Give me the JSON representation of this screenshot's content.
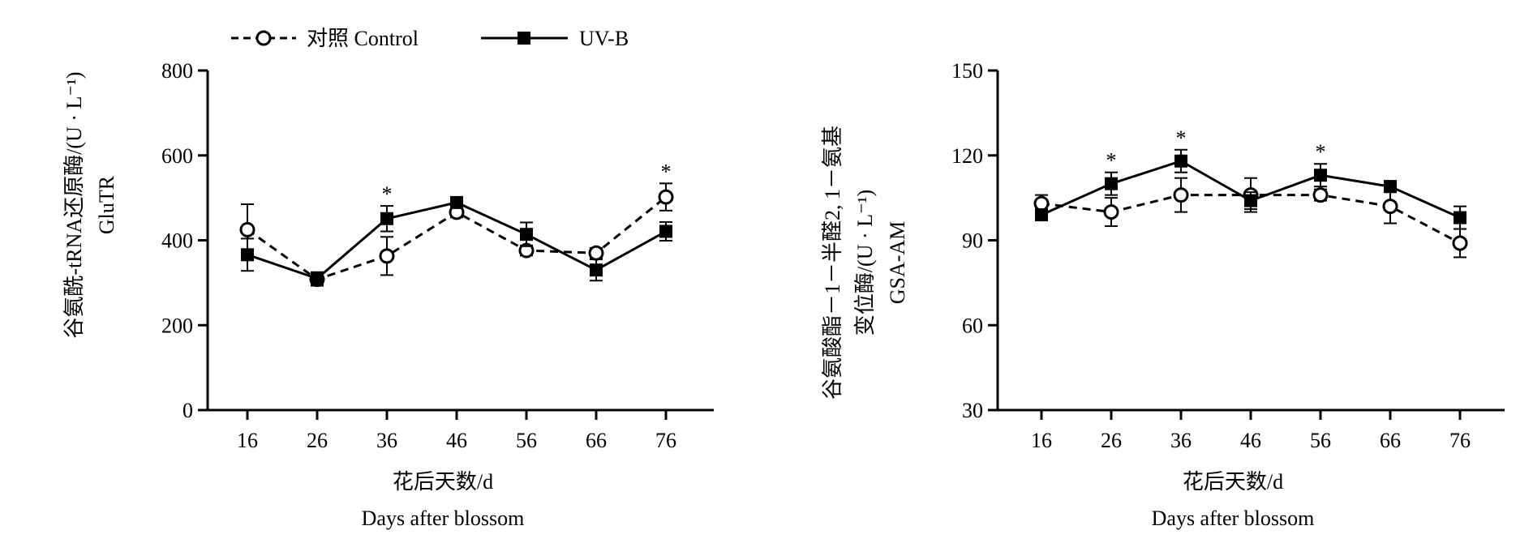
{
  "legend": {
    "control_label": "对照 Control",
    "uvb_label": "UV-B"
  },
  "chart_data": [
    {
      "type": "line",
      "title": "",
      "xlabel": [
        "花后天数/d",
        "Days after blossom"
      ],
      "ylabel": [
        "谷氨酰-tRNA还原酶/(U · L⁻¹)",
        "GluTR"
      ],
      "x": [
        16,
        26,
        36,
        46,
        56,
        66,
        76
      ],
      "ylim": [
        0,
        800
      ],
      "yticks": [
        0,
        200,
        400,
        600,
        800
      ],
      "grid": false,
      "legend_position": "top-left",
      "series": [
        {
          "name": "对照 Control",
          "marker": "open-circle",
          "line": "dashed",
          "values": [
            425,
            308,
            363,
            466,
            376,
            370,
            502
          ],
          "errors": [
            60,
            15,
            45,
            12,
            12,
            12,
            32
          ]
        },
        {
          "name": "UV-B",
          "marker": "filled-square",
          "line": "solid",
          "values": [
            366,
            310,
            451,
            489,
            414,
            330,
            421
          ],
          "errors": [
            38,
            15,
            30,
            12,
            28,
            25,
            22
          ]
        }
      ],
      "annotations": [
        {
          "x": 36,
          "text": "*"
        },
        {
          "x": 76,
          "text": "*"
        }
      ]
    },
    {
      "type": "line",
      "title": "",
      "xlabel": [
        "花后天数/d",
        "Days after blossom"
      ],
      "ylabel": [
        "谷氨酸酯－1－半醛2, 1－氨基",
        "变位酶/(U · L⁻¹)",
        "GSA-AM"
      ],
      "x": [
        16,
        26,
        36,
        46,
        56,
        66,
        76
      ],
      "ylim": [
        30,
        150
      ],
      "yticks": [
        30,
        60,
        90,
        120,
        150
      ],
      "grid": false,
      "series": [
        {
          "name": "对照 Control",
          "marker": "open-circle",
          "line": "dashed",
          "values": [
            103,
            100,
            106,
            106,
            106,
            102,
            89
          ],
          "errors": [
            3,
            5,
            6,
            6,
            2,
            6,
            5
          ]
        },
        {
          "name": "UV-B",
          "marker": "filled-square",
          "line": "solid",
          "values": [
            99,
            110,
            118,
            104,
            113,
            109,
            98
          ],
          "errors": [
            2,
            4,
            4,
            3,
            4,
            2,
            4
          ]
        }
      ],
      "annotations": [
        {
          "x": 26,
          "text": "*"
        },
        {
          "x": 36,
          "text": "*"
        },
        {
          "x": 56,
          "text": "*"
        }
      ]
    }
  ]
}
